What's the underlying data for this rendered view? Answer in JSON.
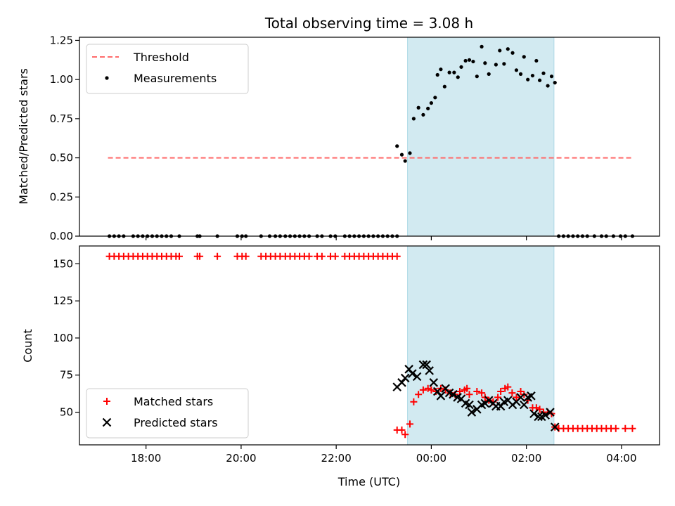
{
  "chart_data": [
    {
      "type": "scatter",
      "title": "Total observing time = 3.08 h",
      "xlabel": "",
      "ylabel": "Matched/Predicted stars",
      "ylim": [
        0,
        1.27
      ],
      "yticks": [
        0.0,
        0.25,
        0.5,
        0.75,
        1.0,
        1.25
      ],
      "ytick_labels": [
        "0.00",
        "0.25",
        "0.50",
        "0.75",
        "1.00",
        "1.25"
      ],
      "xlim_hours": [
        16.6,
        28.8
      ],
      "xticks_hours": [
        18,
        20,
        22,
        24,
        26,
        28
      ],
      "xtick_labels": [
        "",
        "",
        "",
        "",
        "",
        ""
      ],
      "highlight_span_hours": [
        23.5,
        26.58
      ],
      "highlight_color": "#add8e6",
      "legend_position": "upper-left",
      "threshold": {
        "name": "Threshold",
        "value": 0.5,
        "x_from": 17.2,
        "x_to": 28.25,
        "color": "#ff6b6b"
      },
      "series": [
        {
          "name": "Measurements",
          "color": "#000000",
          "marker": "dot",
          "points": [
            [
              17.23,
              0
            ],
            [
              17.33,
              0
            ],
            [
              17.43,
              0
            ],
            [
              17.53,
              0
            ],
            [
              17.73,
              0
            ],
            [
              17.83,
              0
            ],
            [
              17.93,
              0
            ],
            [
              18.03,
              0
            ],
            [
              18.13,
              0
            ],
            [
              18.23,
              0
            ],
            [
              18.33,
              0
            ],
            [
              18.43,
              0
            ],
            [
              18.53,
              0
            ],
            [
              18.7,
              0
            ],
            [
              19.08,
              0
            ],
            [
              19.13,
              0
            ],
            [
              19.5,
              0
            ],
            [
              19.92,
              0
            ],
            [
              20.02,
              0
            ],
            [
              20.1,
              0
            ],
            [
              20.42,
              0
            ],
            [
              20.6,
              0
            ],
            [
              20.72,
              0
            ],
            [
              20.82,
              0
            ],
            [
              20.93,
              0
            ],
            [
              21.03,
              0
            ],
            [
              21.13,
              0
            ],
            [
              21.23,
              0
            ],
            [
              21.33,
              0
            ],
            [
              21.43,
              0
            ],
            [
              21.6,
              0
            ],
            [
              21.7,
              0
            ],
            [
              21.88,
              0
            ],
            [
              21.98,
              0
            ],
            [
              22.18,
              0
            ],
            [
              22.28,
              0
            ],
            [
              22.38,
              0
            ],
            [
              22.48,
              0
            ],
            [
              22.58,
              0
            ],
            [
              22.68,
              0
            ],
            [
              22.78,
              0
            ],
            [
              22.88,
              0
            ],
            [
              22.98,
              0
            ],
            [
              23.08,
              0
            ],
            [
              23.18,
              0
            ],
            [
              23.28,
              0
            ],
            [
              23.28,
              0.575
            ],
            [
              23.38,
              0.52
            ],
            [
              23.45,
              0.48
            ],
            [
              23.55,
              0.53
            ],
            [
              23.63,
              0.75
            ],
            [
              23.73,
              0.82
            ],
            [
              23.83,
              0.775
            ],
            [
              23.93,
              0.815
            ],
            [
              24.0,
              0.85
            ],
            [
              24.08,
              0.885
            ],
            [
              24.13,
              1.03
            ],
            [
              24.2,
              1.065
            ],
            [
              24.28,
              0.955
            ],
            [
              24.38,
              1.045
            ],
            [
              24.48,
              1.045
            ],
            [
              24.56,
              1.015
            ],
            [
              24.63,
              1.08
            ],
            [
              24.72,
              1.12
            ],
            [
              24.8,
              1.125
            ],
            [
              24.88,
              1.115
            ],
            [
              24.96,
              1.02
            ],
            [
              25.06,
              1.21
            ],
            [
              25.13,
              1.105
            ],
            [
              25.21,
              1.035
            ],
            [
              25.36,
              1.095
            ],
            [
              25.44,
              1.185
            ],
            [
              25.53,
              1.1
            ],
            [
              25.61,
              1.195
            ],
            [
              25.71,
              1.17
            ],
            [
              25.79,
              1.06
            ],
            [
              25.88,
              1.035
            ],
            [
              25.95,
              1.145
            ],
            [
              26.03,
              1.0
            ],
            [
              26.13,
              1.025
            ],
            [
              26.21,
              1.12
            ],
            [
              26.28,
              0.995
            ],
            [
              26.36,
              1.04
            ],
            [
              26.45,
              0.96
            ],
            [
              26.53,
              1.02
            ],
            [
              26.6,
              0.98
            ],
            [
              26.68,
              0
            ],
            [
              26.78,
              0
            ],
            [
              26.88,
              0
            ],
            [
              26.98,
              0
            ],
            [
              27.08,
              0
            ],
            [
              27.18,
              0
            ],
            [
              27.28,
              0
            ],
            [
              27.43,
              0
            ],
            [
              27.58,
              0
            ],
            [
              27.68,
              0
            ],
            [
              27.83,
              0
            ],
            [
              27.98,
              0
            ],
            [
              28.08,
              0
            ],
            [
              28.23,
              0
            ]
          ]
        }
      ]
    },
    {
      "type": "scatter",
      "title": "",
      "xlabel": "Time (UTC)",
      "ylabel": "Count",
      "ylim": [
        28,
        162
      ],
      "yticks": [
        50,
        75,
        100,
        125,
        150
      ],
      "ytick_labels": [
        "50",
        "75",
        "100",
        "125",
        "150"
      ],
      "xlim_hours": [
        16.6,
        28.8
      ],
      "xticks_hours": [
        18,
        20,
        22,
        24,
        26,
        28
      ],
      "xtick_labels": [
        "18:00",
        "20:00",
        "22:00",
        "00:00",
        "02:00",
        "04:00"
      ],
      "highlight_span_hours": [
        23.5,
        26.58
      ],
      "highlight_color": "#add8e6",
      "legend_position": "lower-left",
      "series": [
        {
          "name": "Matched stars",
          "color": "#ff0000",
          "marker": "plus",
          "points": [
            [
              17.23,
              155
            ],
            [
              17.33,
              155
            ],
            [
              17.43,
              155
            ],
            [
              17.53,
              155
            ],
            [
              17.63,
              155
            ],
            [
              17.73,
              155
            ],
            [
              17.83,
              155
            ],
            [
              17.93,
              155
            ],
            [
              18.03,
              155
            ],
            [
              18.13,
              155
            ],
            [
              18.23,
              155
            ],
            [
              18.33,
              155
            ],
            [
              18.43,
              155
            ],
            [
              18.53,
              155
            ],
            [
              18.63,
              155
            ],
            [
              18.7,
              155
            ],
            [
              19.08,
              155
            ],
            [
              19.13,
              155
            ],
            [
              19.5,
              155
            ],
            [
              19.92,
              155
            ],
            [
              20.02,
              155
            ],
            [
              20.1,
              155
            ],
            [
              20.42,
              155
            ],
            [
              20.52,
              155
            ],
            [
              20.62,
              155
            ],
            [
              20.72,
              155
            ],
            [
              20.82,
              155
            ],
            [
              20.93,
              155
            ],
            [
              21.03,
              155
            ],
            [
              21.13,
              155
            ],
            [
              21.23,
              155
            ],
            [
              21.33,
              155
            ],
            [
              21.43,
              155
            ],
            [
              21.6,
              155
            ],
            [
              21.7,
              155
            ],
            [
              21.88,
              155
            ],
            [
              21.98,
              155
            ],
            [
              22.18,
              155
            ],
            [
              22.28,
              155
            ],
            [
              22.38,
              155
            ],
            [
              22.48,
              155
            ],
            [
              22.58,
              155
            ],
            [
              22.68,
              155
            ],
            [
              22.78,
              155
            ],
            [
              22.88,
              155
            ],
            [
              22.98,
              155
            ],
            [
              23.08,
              155
            ],
            [
              23.18,
              155
            ],
            [
              23.28,
              155
            ],
            [
              23.28,
              38
            ],
            [
              23.38,
              38
            ],
            [
              23.45,
              35
            ],
            [
              23.55,
              42
            ],
            [
              23.63,
              57
            ],
            [
              23.73,
              62
            ],
            [
              23.83,
              65
            ],
            [
              23.93,
              66
            ],
            [
              24.0,
              65
            ],
            [
              24.1,
              64
            ],
            [
              24.2,
              66
            ],
            [
              24.3,
              65
            ],
            [
              24.4,
              63
            ],
            [
              24.5,
              62
            ],
            [
              24.6,
              64
            ],
            [
              24.7,
              65
            ],
            [
              24.75,
              66
            ],
            [
              24.8,
              62
            ],
            [
              24.96,
              64
            ],
            [
              25.06,
              63
            ],
            [
              25.13,
              60
            ],
            [
              25.21,
              58
            ],
            [
              25.3,
              57
            ],
            [
              25.4,
              60
            ],
            [
              25.46,
              64
            ],
            [
              25.55,
              66
            ],
            [
              25.61,
              67
            ],
            [
              25.7,
              63
            ],
            [
              25.79,
              60
            ],
            [
              25.88,
              64
            ],
            [
              25.95,
              62
            ],
            [
              26.03,
              58
            ],
            [
              26.13,
              53
            ],
            [
              26.21,
              53
            ],
            [
              26.28,
              52
            ],
            [
              26.36,
              50
            ],
            [
              26.45,
              50
            ],
            [
              26.53,
              49
            ],
            [
              26.6,
              40
            ],
            [
              26.68,
              39
            ],
            [
              26.78,
              39
            ],
            [
              26.88,
              39
            ],
            [
              26.98,
              39
            ],
            [
              27.08,
              39
            ],
            [
              27.18,
              39
            ],
            [
              27.28,
              39
            ],
            [
              27.38,
              39
            ],
            [
              27.48,
              39
            ],
            [
              27.58,
              39
            ],
            [
              27.68,
              39
            ],
            [
              27.78,
              39
            ],
            [
              27.88,
              39
            ],
            [
              28.08,
              39
            ],
            [
              28.23,
              39
            ]
          ]
        },
        {
          "name": "Predicted stars",
          "color": "#000000",
          "marker": "x",
          "points": [
            [
              23.28,
              67
            ],
            [
              23.38,
              70
            ],
            [
              23.45,
              73
            ],
            [
              23.53,
              79
            ],
            [
              23.6,
              76
            ],
            [
              23.7,
              74
            ],
            [
              23.83,
              82
            ],
            [
              23.9,
              82
            ],
            [
              23.96,
              78
            ],
            [
              24.05,
              70
            ],
            [
              24.13,
              64
            ],
            [
              24.2,
              61
            ],
            [
              24.3,
              66
            ],
            [
              24.38,
              63
            ],
            [
              24.46,
              62
            ],
            [
              24.55,
              60
            ],
            [
              24.63,
              59
            ],
            [
              24.72,
              56
            ],
            [
              24.8,
              55
            ],
            [
              24.85,
              50
            ],
            [
              24.96,
              52
            ],
            [
              25.06,
              55
            ],
            [
              25.13,
              56
            ],
            [
              25.21,
              58
            ],
            [
              25.3,
              56
            ],
            [
              25.36,
              54
            ],
            [
              25.46,
              54
            ],
            [
              25.53,
              57
            ],
            [
              25.61,
              58
            ],
            [
              25.71,
              55
            ],
            [
              25.79,
              57
            ],
            [
              25.88,
              60
            ],
            [
              25.95,
              55
            ],
            [
              26.03,
              60
            ],
            [
              26.1,
              61
            ],
            [
              26.16,
              49
            ],
            [
              26.25,
              47
            ],
            [
              26.32,
              47
            ],
            [
              26.4,
              48
            ],
            [
              26.5,
              50
            ],
            [
              26.6,
              40
            ]
          ]
        }
      ]
    }
  ]
}
